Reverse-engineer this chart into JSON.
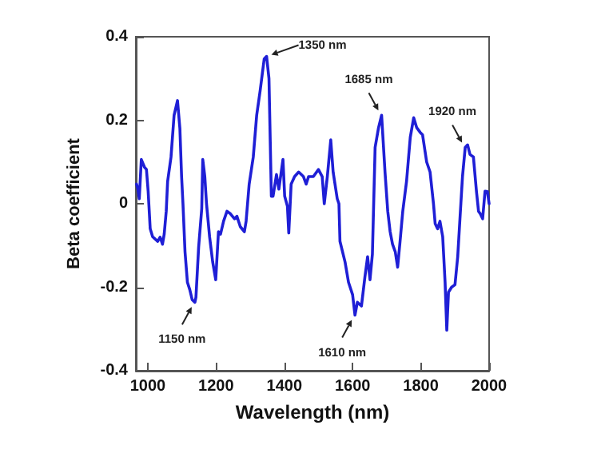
{
  "chart_data": {
    "type": "line",
    "xlabel": "Wavelength (nm)",
    "ylabel": "Beta coefficient",
    "xlim": [
      965,
      2000
    ],
    "xticks": [
      1000,
      1200,
      1400,
      1600,
      1800,
      2000
    ],
    "ylim": [
      -0.4,
      0.4
    ],
    "yticks": [
      -0.4,
      -0.2,
      0,
      0.2,
      0.4
    ],
    "grid": false,
    "marker": "none",
    "line_style": "solid",
    "series": [
      {
        "color": "#1f1fd6",
        "x": [
          967,
          971,
          975,
          981,
          990,
          996,
          1001,
          1007,
          1014,
          1022,
          1029,
          1036,
          1043,
          1048,
          1054,
          1058,
          1068,
          1077,
          1087,
          1094,
          1099,
          1103,
          1109,
          1116,
          1123,
          1130,
          1138,
          1141,
          1149,
          1158,
          1161,
          1167,
          1172,
          1181,
          1190,
          1199,
          1207,
          1213,
          1222,
          1232,
          1242,
          1254,
          1261,
          1271,
          1283,
          1288,
          1297,
          1309,
          1319,
          1329,
          1341,
          1348,
          1355,
          1362,
          1367,
          1377,
          1384,
          1396,
          1401,
          1409,
          1413,
          1420,
          1430,
          1442,
          1456,
          1464,
          1471,
          1485,
          1500,
          1511,
          1517,
          1526,
          1536,
          1543,
          1555,
          1560,
          1563,
          1578,
          1588,
          1600,
          1607,
          1614,
          1626,
          1636,
          1644,
          1651,
          1658,
          1666,
          1676,
          1685,
          1695,
          1703,
          1710,
          1717,
          1725,
          1732,
          1739,
          1747,
          1758,
          1769,
          1779,
          1788,
          1798,
          1805,
          1817,
          1827,
          1837,
          1842,
          1849,
          1856,
          1864,
          1871,
          1876,
          1881,
          1890,
          1900,
          1908,
          1915,
          1922,
          1930,
          1937,
          1944,
          1954,
          1963,
          1969,
          1974,
          1981,
          1988,
          1995,
          2000
        ],
        "values": [
          0.047,
          0.035,
          0.012,
          0.106,
          0.088,
          0.082,
          0.03,
          -0.06,
          -0.079,
          -0.085,
          -0.09,
          -0.08,
          -0.097,
          -0.073,
          -0.018,
          0.053,
          0.112,
          0.212,
          0.247,
          0.18,
          0.065,
          0,
          -0.115,
          -0.188,
          -0.206,
          -0.23,
          -0.236,
          -0.224,
          -0.103,
          -0.012,
          0.106,
          0.065,
          0,
          -0.079,
          -0.139,
          -0.182,
          -0.067,
          -0.073,
          -0.042,
          -0.018,
          -0.024,
          -0.036,
          -0.03,
          -0.055,
          -0.067,
          -0.042,
          0.047,
          0.112,
          0.212,
          0.27,
          0.347,
          0.353,
          0.3,
          0.018,
          0.018,
          0.07,
          0.035,
          0.106,
          0.018,
          -0.006,
          -0.07,
          0.047,
          0.065,
          0.076,
          0.065,
          0.047,
          0.065,
          0.065,
          0.082,
          0.065,
          0,
          0.065,
          0.153,
          0.076,
          0.012,
          0,
          -0.09,
          -0.14,
          -0.188,
          -0.218,
          -0.267,
          -0.236,
          -0.245,
          -0.176,
          -0.127,
          -0.182,
          -0.121,
          0.135,
          0.182,
          0.212,
          0.076,
          -0.018,
          -0.067,
          -0.097,
          -0.115,
          -0.152,
          -0.091,
          -0.018,
          0.053,
          0.159,
          0.206,
          0.182,
          0.171,
          0.165,
          0.1,
          0.076,
          0,
          -0.048,
          -0.06,
          -0.042,
          -0.079,
          -0.188,
          -0.303,
          -0.212,
          -0.2,
          -0.194,
          -0.127,
          -0.03,
          0.065,
          0.135,
          0.141,
          0.118,
          0.112,
          0.029,
          -0.018,
          -0.024,
          -0.036,
          0.03,
          0.029,
          0
        ]
      }
    ],
    "annotations": [
      {
        "text": "1150 nm",
        "x": 1138,
        "y": -0.236
      },
      {
        "text": "1350 nm",
        "x": 1348,
        "y": 0.353
      },
      {
        "text": "1610 nm",
        "x": 1607,
        "y": -0.267
      },
      {
        "text": "1685 nm",
        "x": 1685,
        "y": 0.212
      },
      {
        "text": "1920 nm",
        "x": 1930,
        "y": 0.135
      }
    ]
  }
}
